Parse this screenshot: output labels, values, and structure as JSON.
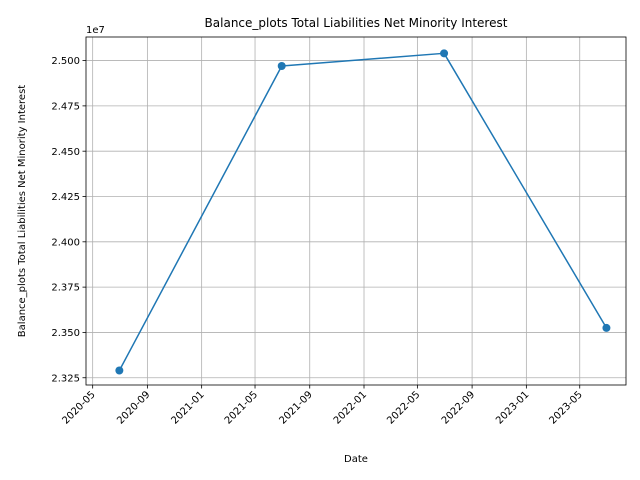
{
  "chart_data": {
    "type": "line",
    "title": "Balance_plots Total Liabilities Net Minority Interest",
    "xlabel": "Date",
    "ylabel": "Balance_plots Total Liabilities Net Minority Interest",
    "y_offset_label": "1e7",
    "x_ticks": [
      "2020-05",
      "2020-09",
      "2021-01",
      "2021-05",
      "2021-09",
      "2022-01",
      "2022-05",
      "2022-09",
      "2023-01",
      "2023-05"
    ],
    "y_ticks": [
      "2.325",
      "2.350",
      "2.375",
      "2.400",
      "2.425",
      "2.450",
      "2.475",
      "2.500"
    ],
    "y_tick_values": [
      23250000,
      23500000,
      23750000,
      24000000,
      24250000,
      24500000,
      24750000,
      25000000
    ],
    "series": [
      {
        "x": [
          "2020-06-30",
          "2021-06-30",
          "2022-06-30",
          "2023-06-30"
        ],
        "y": [
          23290000,
          24970000,
          25040000,
          23525000
        ],
        "color": "#1f77b4"
      }
    ],
    "ylim": [
      23210000,
      25130000
    ],
    "xlim": [
      "2020-04-16",
      "2023-08-13"
    ],
    "grid": true,
    "marker": "circle"
  }
}
